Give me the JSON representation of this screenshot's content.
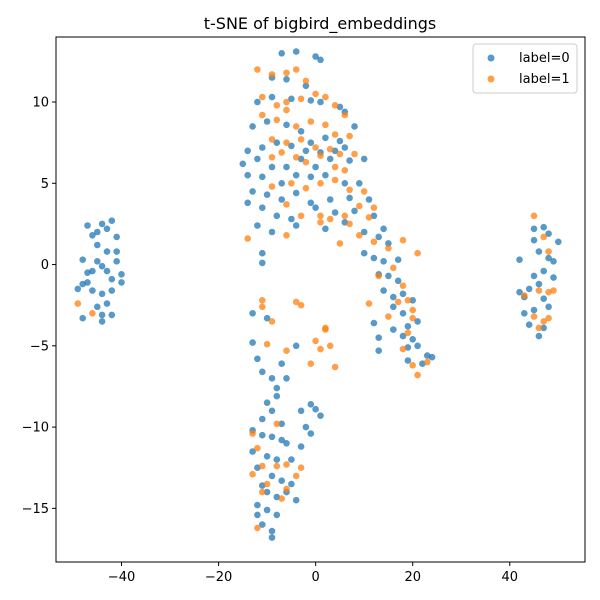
{
  "chart_data": {
    "type": "scatter",
    "title": "t-SNE of bigbird_embeddings",
    "xlabel": "",
    "ylabel": "",
    "xlim": [
      -53.5,
      55.5
    ],
    "ylim": [
      -18.3,
      14.0
    ],
    "xticks": [
      -40,
      -20,
      0,
      20,
      40
    ],
    "yticks": [
      10,
      5,
      0,
      -5,
      -10,
      -15
    ],
    "xtick_labels": [
      "−40",
      "−20",
      "0",
      "20",
      "40"
    ],
    "ytick_labels": [
      "10",
      "5",
      "0",
      "−5",
      "−10",
      "−15"
    ],
    "grid": false,
    "legend_position": "top-right",
    "series": [
      {
        "name": "label=0",
        "color": "#1f77b4",
        "points": [
          [
            -48,
            0.3
          ],
          [
            -47,
            2.4
          ],
          [
            -46,
            1.8
          ],
          [
            -45,
            0.2
          ],
          [
            -44,
            2.5
          ],
          [
            -43,
            2.2
          ],
          [
            -42,
            2.7
          ],
          [
            -41,
            1.7
          ],
          [
            -45,
            1.2
          ],
          [
            -43,
            0.8
          ],
          [
            -41,
            0.2
          ],
          [
            -40,
            -0.6
          ],
          [
            -42,
            -0.9
          ],
          [
            -44,
            -0.1
          ],
          [
            -46,
            -0.4
          ],
          [
            -47,
            -1.1
          ],
          [
            -48,
            -1.2
          ],
          [
            -46,
            -1.6
          ],
          [
            -44,
            -1.8
          ],
          [
            -42,
            -1.6
          ],
          [
            -40,
            -1.1
          ],
          [
            -43,
            -2.4
          ],
          [
            -45,
            -2.6
          ],
          [
            -44,
            -3.1
          ],
          [
            -42,
            -3.1
          ],
          [
            -44,
            -3.5
          ],
          [
            -48,
            -3.3
          ],
          [
            -47,
            -0.5
          ],
          [
            -49,
            -1.5
          ],
          [
            -43,
            -0.4
          ],
          [
            -45,
            2.0
          ],
          [
            -41,
            0.8
          ],
          [
            -7,
            13
          ],
          [
            -4,
            13.1
          ],
          [
            0,
            12.8
          ],
          [
            1,
            12.6
          ],
          [
            -9,
            11.5
          ],
          [
            -6,
            11.4
          ],
          [
            -2,
            11.0
          ],
          [
            -12,
            10.0
          ],
          [
            -9,
            10.3
          ],
          [
            -5,
            10.2
          ],
          [
            -1,
            10.1
          ],
          [
            1,
            10.0
          ],
          [
            5,
            9.7
          ],
          [
            6,
            9.4
          ],
          [
            -13,
            8.5
          ],
          [
            -10,
            8.8
          ],
          [
            -6,
            8.6
          ],
          [
            -3,
            8.2
          ],
          [
            -1,
            7.5
          ],
          [
            2,
            7.8
          ],
          [
            5,
            7.6
          ],
          [
            8,
            8.5
          ],
          [
            -14,
            7.0
          ],
          [
            -11,
            7.2
          ],
          [
            -8,
            7.5
          ],
          [
            -5,
            7.3
          ],
          [
            -2,
            7.0
          ],
          [
            1,
            6.9
          ],
          [
            4,
            7.0
          ],
          [
            6,
            7.2
          ],
          [
            -15,
            6.2
          ],
          [
            -12,
            6.5
          ],
          [
            -9,
            6.0
          ],
          [
            -6,
            6.0
          ],
          [
            -3,
            6.5
          ],
          [
            0,
            6.0
          ],
          [
            3,
            6.5
          ],
          [
            7,
            6.4
          ],
          [
            10,
            6.5
          ],
          [
            -14,
            5.5
          ],
          [
            -11,
            5.4
          ],
          [
            -7,
            5.0
          ],
          [
            -4,
            5.5
          ],
          [
            -1,
            5.4
          ],
          [
            2,
            5.5
          ],
          [
            6,
            5.0
          ],
          [
            9,
            5.0
          ],
          [
            -13,
            4.5
          ],
          [
            -10,
            4.3
          ],
          [
            -7,
            4.0
          ],
          [
            -4,
            4.4
          ],
          [
            -1,
            3.8
          ],
          [
            3,
            4.0
          ],
          [
            7,
            4.1
          ],
          [
            11,
            4.0
          ],
          [
            -14,
            3.8
          ],
          [
            -11,
            3.5
          ],
          [
            -8,
            3.0
          ],
          [
            -5,
            2.8
          ],
          [
            0,
            3.5
          ],
          [
            4,
            3.2
          ],
          [
            8,
            3.3
          ],
          [
            12,
            3.0
          ],
          [
            -12,
            2.4
          ],
          [
            -9,
            2.0
          ],
          [
            -4,
            2.4
          ],
          [
            2,
            2.2
          ],
          [
            6,
            2.6
          ],
          [
            10,
            2.0
          ],
          [
            14,
            2.2
          ],
          [
            -11,
            0.7
          ],
          [
            13,
            1.7
          ],
          [
            15,
            1.3
          ],
          [
            10,
            0.7
          ],
          [
            12,
            0.4
          ],
          [
            14,
            0.2
          ],
          [
            17,
            0.3
          ],
          [
            13,
            -0.6
          ],
          [
            15,
            -0.7
          ],
          [
            17,
            -1.0
          ],
          [
            18,
            -1.8
          ],
          [
            14,
            -1.6
          ],
          [
            16,
            -2.0
          ],
          [
            20,
            -2.2
          ],
          [
            16,
            -2.6
          ],
          [
            18,
            -3.0
          ],
          [
            21,
            -3.5
          ],
          [
            19,
            -3.8
          ],
          [
            12,
            -3.6
          ],
          [
            13,
            -4.5
          ],
          [
            16,
            -4.0
          ],
          [
            18,
            -4.4
          ],
          [
            20,
            -4.6
          ],
          [
            19,
            -5.1
          ],
          [
            21,
            -5.0
          ],
          [
            23,
            -5.6
          ],
          [
            24,
            -5.7
          ],
          [
            19,
            -5.9
          ],
          [
            22,
            -6.1
          ],
          [
            13,
            -5.3
          ],
          [
            -11,
            0.1
          ],
          [
            -10,
            -3.3
          ],
          [
            -13,
            -4.8
          ],
          [
            -13,
            -3.0
          ],
          [
            -12,
            -5.8
          ],
          [
            -11,
            -6.6
          ],
          [
            -9,
            -7.0
          ],
          [
            -8,
            -7.6
          ],
          [
            -7,
            -6.1
          ],
          [
            -6,
            -7.0
          ],
          [
            -4,
            -5.0
          ],
          [
            -10,
            -8.5
          ],
          [
            -8,
            -8.1
          ],
          [
            -11,
            -9.5
          ],
          [
            -9,
            -9.0
          ],
          [
            -7,
            -9.8
          ],
          [
            -3,
            -9.0
          ],
          [
            -1,
            -8.6
          ],
          [
            0,
            -8.9
          ],
          [
            1,
            -9.3
          ],
          [
            -13,
            -10.2
          ],
          [
            -11,
            -10.5
          ],
          [
            -9,
            -10.6
          ],
          [
            -7,
            -10.8
          ],
          [
            -6,
            -11.0
          ],
          [
            -2,
            -10.0
          ],
          [
            -1,
            -10.4
          ],
          [
            -13,
            -11.5
          ],
          [
            -10,
            -11.8
          ],
          [
            -8,
            -12.0
          ],
          [
            -5,
            -12.0
          ],
          [
            -3,
            -11.2
          ],
          [
            -12,
            -12.5
          ],
          [
            -9,
            -13.0
          ],
          [
            -7,
            -13.3
          ],
          [
            -5,
            -13.5
          ],
          [
            -10,
            -14.0
          ],
          [
            -8,
            -14.3
          ],
          [
            -6,
            -14.0
          ],
          [
            -4,
            -14.5
          ],
          [
            -12,
            -14.8
          ],
          [
            -10,
            -15.1
          ],
          [
            -8,
            -15.4
          ],
          [
            -11,
            -16.0
          ],
          [
            -9,
            -16.4
          ],
          [
            -9,
            -16.8
          ],
          [
            -11,
            -13.6
          ],
          [
            -12,
            -15.4
          ],
          [
            42,
            0.3
          ],
          [
            45,
            2.2
          ],
          [
            47,
            2.3
          ],
          [
            48,
            1.9
          ],
          [
            50,
            1.4
          ],
          [
            46,
            0.8
          ],
          [
            48,
            0.4
          ],
          [
            47,
            -0.4
          ],
          [
            49,
            -0.8
          ],
          [
            45,
            -0.7
          ],
          [
            46,
            -1.2
          ],
          [
            42,
            -1.7
          ],
          [
            43,
            -2.0
          ],
          [
            44,
            -1.5
          ],
          [
            45,
            -2.8
          ],
          [
            43,
            -3.0
          ],
          [
            47,
            -2.1
          ],
          [
            48,
            -2.6
          ],
          [
            44,
            -3.7
          ],
          [
            47,
            -3.9
          ],
          [
            46,
            -4.4
          ],
          [
            49,
            0.2
          ],
          [
            45,
            1.5
          ]
        ]
      },
      {
        "name": "label=1",
        "color": "#ff7f0e",
        "points": [
          [
            -49,
            -2.4
          ],
          [
            -46,
            -3.0
          ],
          [
            -12,
            12.0
          ],
          [
            -9,
            11.7
          ],
          [
            -6,
            11.8
          ],
          [
            -4,
            12.0
          ],
          [
            -2,
            11.3
          ],
          [
            -11,
            10.3
          ],
          [
            -8,
            9.8
          ],
          [
            -6,
            10.0
          ],
          [
            -3,
            10.2
          ],
          [
            0,
            10.5
          ],
          [
            2,
            10.3
          ],
          [
            4,
            9.8
          ],
          [
            6,
            9.2
          ],
          [
            -11,
            9.2
          ],
          [
            -8,
            8.9
          ],
          [
            -6,
            9.5
          ],
          [
            -4,
            8.5
          ],
          [
            -1,
            8.8
          ],
          [
            2,
            8.6
          ],
          [
            4,
            8.0
          ],
          [
            7,
            7.9
          ],
          [
            -9,
            7.7
          ],
          [
            -6,
            7.5
          ],
          [
            -3,
            7.7
          ],
          [
            0,
            7.2
          ],
          [
            3,
            7.1
          ],
          [
            5,
            6.8
          ],
          [
            8,
            6.8
          ],
          [
            -9,
            6.6
          ],
          [
            -7,
            6.9
          ],
          [
            -4,
            6.6
          ],
          [
            -2,
            6.3
          ],
          [
            1,
            6.7
          ],
          [
            4,
            6.0
          ],
          [
            6,
            5.8
          ],
          [
            -5,
            5.0
          ],
          [
            -2,
            4.7
          ],
          [
            1,
            5.0
          ],
          [
            4,
            5.2
          ],
          [
            7,
            4.6
          ],
          [
            10,
            4.5
          ],
          [
            -9,
            4.8
          ],
          [
            -6,
            3.7
          ],
          [
            -3,
            3.0
          ],
          [
            1,
            3.0
          ],
          [
            3,
            2.8
          ],
          [
            6,
            3.0
          ],
          [
            9,
            3.6
          ],
          [
            12,
            3.5
          ],
          [
            -14,
            1.6
          ],
          [
            -6,
            1.8
          ],
          [
            1,
            2.6
          ],
          [
            5,
            1.3
          ],
          [
            9,
            1.8
          ],
          [
            12,
            1.4
          ],
          [
            15,
            1.0
          ],
          [
            18,
            1.5
          ],
          [
            21,
            0.7
          ],
          [
            7,
            2.5
          ],
          [
            11,
            2.9
          ],
          [
            13,
            -0.7
          ],
          [
            16,
            -0.2
          ],
          [
            18,
            -1.3
          ],
          [
            19,
            -2.2
          ],
          [
            17,
            -2.3
          ],
          [
            20,
            -2.8
          ],
          [
            20,
            -3.3
          ],
          [
            11,
            -2.4
          ],
          [
            15,
            -3.2
          ],
          [
            19,
            -4.2
          ],
          [
            18,
            -5.2
          ],
          [
            20,
            -6.2
          ],
          [
            21,
            -6.8
          ],
          [
            23,
            -6.0
          ],
          [
            -11,
            -2.2
          ],
          [
            -9,
            -3.5
          ],
          [
            -10,
            -4.9
          ],
          [
            -11,
            -2.6
          ],
          [
            -4,
            -2.3
          ],
          [
            -3,
            -2.5
          ],
          [
            2,
            -3.9
          ],
          [
            2,
            -4.0
          ],
          [
            0,
            -4.7
          ],
          [
            1,
            -5.2
          ],
          [
            -6,
            -5.3
          ],
          [
            3,
            -5.0
          ],
          [
            4,
            -6.3
          ],
          [
            -1,
            -6.1
          ],
          [
            -8,
            -9.8
          ],
          [
            -13,
            -10.4
          ],
          [
            -12,
            -11.3
          ],
          [
            -11,
            -12.4
          ],
          [
            -8,
            -12.4
          ],
          [
            -6,
            -12.3
          ],
          [
            -3,
            -12.5
          ],
          [
            -13,
            -12.9
          ],
          [
            -10,
            -13.5
          ],
          [
            -6,
            -13.8
          ],
          [
            -4,
            -13.0
          ],
          [
            -7,
            -14.4
          ],
          [
            -11,
            -14.0
          ],
          [
            -12,
            -16.2
          ],
          [
            45,
            3.0
          ],
          [
            47,
            1.7
          ],
          [
            48,
            0.8
          ],
          [
            46,
            -1.6
          ],
          [
            48,
            -1.7
          ],
          [
            49,
            -1.6
          ],
          [
            45,
            -3.2
          ],
          [
            47,
            -3.5
          ],
          [
            46,
            -3.9
          ],
          [
            48,
            -3.3
          ],
          [
            43,
            -1.9
          ]
        ]
      }
    ]
  }
}
